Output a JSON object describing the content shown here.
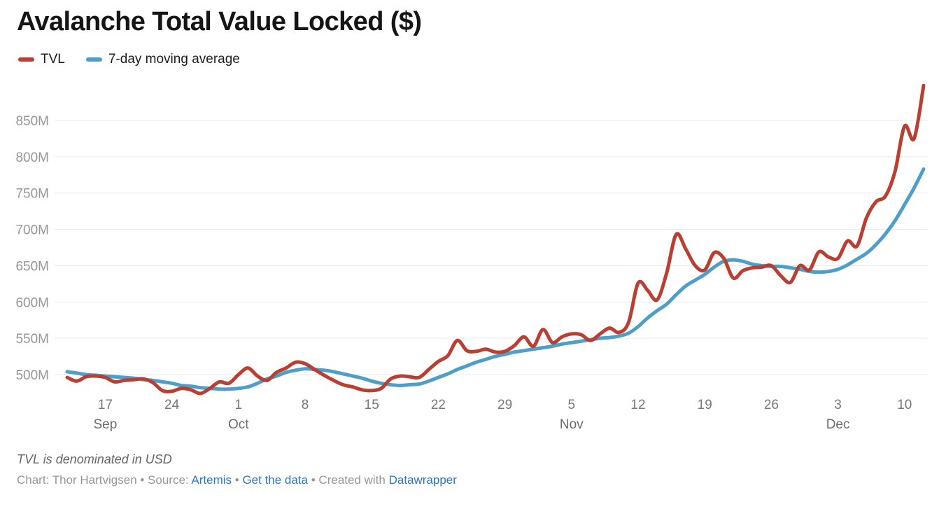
{
  "header": {
    "title": "Avalanche Total Value Locked ($)"
  },
  "legend": [
    {
      "label": "TVL",
      "color": "#bb3e32"
    },
    {
      "label": "7-day moving average",
      "color": "#4d9fca"
    }
  ],
  "footer": {
    "note": "TVL is denominated in USD",
    "credit_prefix": "Chart: Thor Hartvigsen • Source: ",
    "source_link": "Artemis",
    "sep1": " • ",
    "data_link": "Get the data",
    "sep2": " • Created with ",
    "tool_link": "Datawrapper"
  },
  "chart_data": {
    "type": "line",
    "title": "Avalanche Total Value Locked ($)",
    "ylabel": "",
    "xlabel": "",
    "grid": "horizontal",
    "legend_position": "top-left",
    "ylim": [
      470,
      905
    ],
    "y_ticks": [
      {
        "value": 500,
        "label": "500M"
      },
      {
        "value": 550,
        "label": "550M"
      },
      {
        "value": 600,
        "label": "600M"
      },
      {
        "value": 650,
        "label": "650M"
      },
      {
        "value": 700,
        "label": "700M"
      },
      {
        "value": 750,
        "label": "750M"
      },
      {
        "value": 800,
        "label": "800M"
      },
      {
        "value": 850,
        "label": "850M"
      }
    ],
    "x_ticks": [
      {
        "i": 4,
        "day": "17",
        "month": "Sep"
      },
      {
        "i": 11,
        "day": "24"
      },
      {
        "i": 18,
        "day": "1",
        "month": "Oct"
      },
      {
        "i": 25,
        "day": "8"
      },
      {
        "i": 32,
        "day": "15"
      },
      {
        "i": 39,
        "day": "22"
      },
      {
        "i": 46,
        "day": "29"
      },
      {
        "i": 53,
        "day": "5",
        "month": "Nov"
      },
      {
        "i": 60,
        "day": "12"
      },
      {
        "i": 67,
        "day": "19"
      },
      {
        "i": 74,
        "day": "26"
      },
      {
        "i": 81,
        "day": "3",
        "month": "Dec"
      },
      {
        "i": 88,
        "day": "10"
      }
    ],
    "x": [
      "Sep 13",
      "Sep 14",
      "Sep 15",
      "Sep 16",
      "Sep 17",
      "Sep 18",
      "Sep 19",
      "Sep 20",
      "Sep 21",
      "Sep 22",
      "Sep 23",
      "Sep 24",
      "Sep 25",
      "Sep 26",
      "Sep 27",
      "Sep 28",
      "Sep 29",
      "Sep 30",
      "Oct 1",
      "Oct 2",
      "Oct 3",
      "Oct 4",
      "Oct 5",
      "Oct 6",
      "Oct 7",
      "Oct 8",
      "Oct 9",
      "Oct 10",
      "Oct 11",
      "Oct 12",
      "Oct 13",
      "Oct 14",
      "Oct 15",
      "Oct 16",
      "Oct 17",
      "Oct 18",
      "Oct 19",
      "Oct 20",
      "Oct 21",
      "Oct 22",
      "Oct 23",
      "Oct 24",
      "Oct 25",
      "Oct 26",
      "Oct 27",
      "Oct 28",
      "Oct 29",
      "Oct 30",
      "Oct 31",
      "Nov 1",
      "Nov 2",
      "Nov 3",
      "Nov 4",
      "Nov 5",
      "Nov 6",
      "Nov 7",
      "Nov 8",
      "Nov 9",
      "Nov 10",
      "Nov 11",
      "Nov 12",
      "Nov 13",
      "Nov 14",
      "Nov 15",
      "Nov 16",
      "Nov 17",
      "Nov 18",
      "Nov 19",
      "Nov 20",
      "Nov 21",
      "Nov 22",
      "Nov 23",
      "Nov 24",
      "Nov 25",
      "Nov 26",
      "Nov 27",
      "Nov 28",
      "Nov 29",
      "Nov 30",
      "Dec 1",
      "Dec 2",
      "Dec 3",
      "Dec 4",
      "Dec 5",
      "Dec 6",
      "Dec 7",
      "Dec 8",
      "Dec 9",
      "Dec 10",
      "Dec 11",
      "Dec 12"
    ],
    "series": [
      {
        "name": "TVL",
        "color": "#bb3e32",
        "width": 5,
        "values": [
          496,
          491,
          497,
          498,
          496,
          490,
          492,
          493,
          494,
          489,
          478,
          477,
          481,
          479,
          474,
          481,
          490,
          488,
          500,
          509,
          498,
          492,
          503,
          509,
          517,
          515,
          507,
          499,
          492,
          486,
          483,
          479,
          478,
          481,
          494,
          498,
          497,
          496,
          507,
          518,
          526,
          547,
          533,
          532,
          535,
          531,
          532,
          540,
          552,
          539,
          562,
          544,
          552,
          556,
          555,
          547,
          556,
          564,
          558,
          572,
          626,
          616,
          603,
          640,
          693,
          673,
          650,
          644,
          668,
          660,
          633,
          643,
          647,
          648,
          650,
          636,
          627,
          650,
          644,
          669,
          662,
          660,
          684,
          677,
          716,
          738,
          746,
          780,
          842,
          825,
          898
        ]
      },
      {
        "name": "7-day moving average",
        "color": "#4d9fca",
        "width": 5,
        "values": [
          504,
          502,
          500,
          499,
          498,
          497,
          496,
          495,
          493,
          492,
          490,
          488,
          485,
          484,
          482,
          481,
          480,
          480,
          481,
          483,
          488,
          494,
          498,
          503,
          506,
          508,
          507,
          506,
          504,
          501,
          498,
          495,
          491,
          488,
          486,
          485,
          486,
          487,
          491,
          496,
          501,
          507,
          512,
          517,
          521,
          525,
          528,
          531,
          533,
          535,
          537,
          539,
          542,
          544,
          546,
          548,
          550,
          551,
          553,
          557,
          566,
          578,
          588,
          597,
          610,
          622,
          630,
          638,
          648,
          656,
          658,
          656,
          652,
          650,
          649,
          649,
          647,
          645,
          642,
          641,
          642,
          645,
          651,
          659,
          667,
          679,
          694,
          712,
          734,
          757,
          783
        ]
      }
    ]
  }
}
